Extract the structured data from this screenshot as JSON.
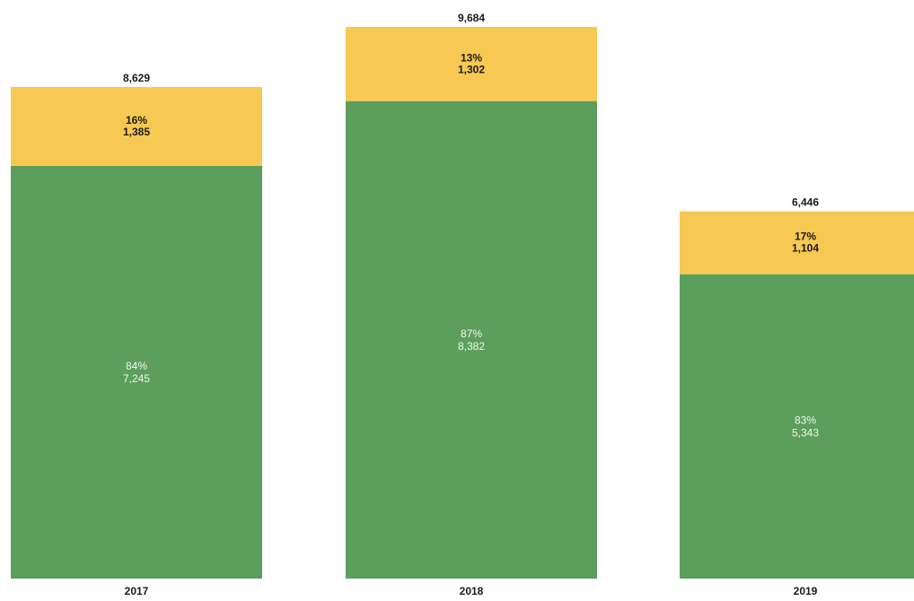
{
  "chart_data": {
    "type": "bar",
    "stacked": true,
    "title": "",
    "xlabel": "",
    "ylabel": "",
    "categories": [
      "2017",
      "2018",
      "2019"
    ],
    "series": [
      {
        "values": [
          7245,
          8382,
          5343
        ],
        "percent_labels": [
          "84%",
          "87%",
          "83%"
        ],
        "value_labels": [
          "7,245",
          "8,382",
          "5,343"
        ],
        "color": "#5c9e5c"
      },
      {
        "values": [
          1385,
          1302,
          1104
        ],
        "percent_labels": [
          "16%",
          "13%",
          "17%"
        ],
        "value_labels": [
          "1,385",
          "1,302",
          "1,104"
        ],
        "color": "#f7c952"
      }
    ],
    "totals": [
      8629,
      9684,
      6446
    ],
    "total_labels": [
      "8,629",
      "9,684",
      "6,446"
    ],
    "ylim": [
      0,
      9684
    ],
    "grid": false,
    "legend": "none"
  }
}
